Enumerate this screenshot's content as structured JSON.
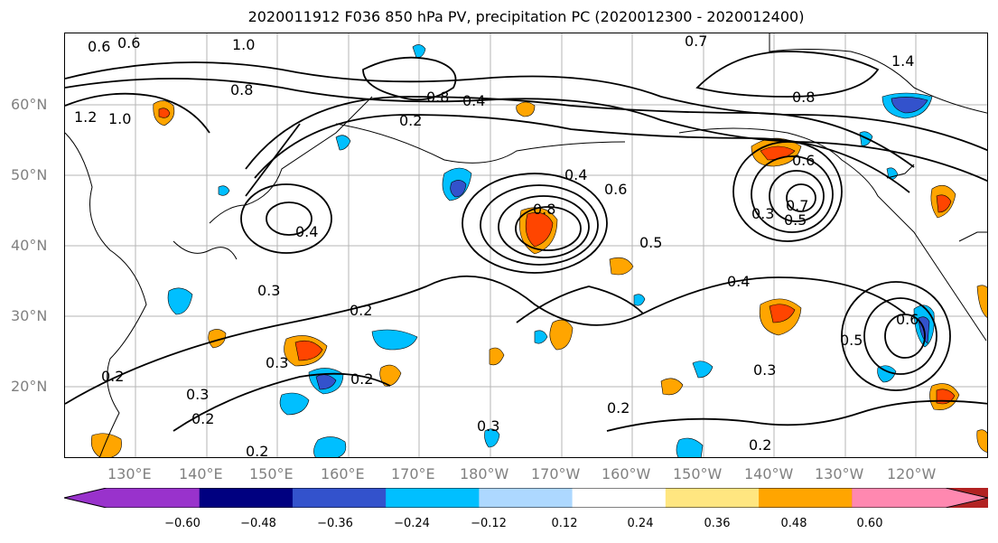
{
  "title": "2020011912 F036 850 hPa PV, precipitation PC (2020012300 - 2020012400)",
  "lat_labels": [
    "60°N",
    "50°N",
    "40°N",
    "30°N",
    "20°N"
  ],
  "lon_labels": [
    "130°E",
    "140°E",
    "150°E",
    "160°E",
    "170°E",
    "180°W",
    "170°W",
    "160°W",
    "150°W",
    "140°W",
    "130°W",
    "120°W"
  ],
  "contour_labels": [
    "0.6",
    "0.6",
    "1.0",
    "0.8",
    "1.2",
    "1.0",
    "0.2",
    "0.8",
    "0.4",
    "0.7",
    "1.4",
    "0.8",
    "0.4",
    "0.6",
    "0.6",
    "0.8",
    "0.7",
    "0.5",
    "0.3",
    "0.5",
    "0.4",
    "0.3",
    "0.2",
    "0.3",
    "0.2",
    "0.2",
    "0.3",
    "0.2",
    "0.3",
    "0.2",
    "0.3",
    "0.6",
    "0.5",
    "0.4",
    "0.2",
    "0.2"
  ],
  "colorbar": {
    "colors": [
      "#9932cc",
      "#000080",
      "#3352cc",
      "#00bfff",
      "#add8ff",
      "#ffffff",
      "#ffe680",
      "#ffa500",
      "#ff4500",
      "#b22222",
      "#ff88b0"
    ],
    "tick_labels": [
      "−0.60",
      "−0.48",
      "−0.36",
      "−0.24",
      "−0.12",
      "0.12",
      "0.24",
      "0.36",
      "0.48",
      "0.60"
    ]
  }
}
